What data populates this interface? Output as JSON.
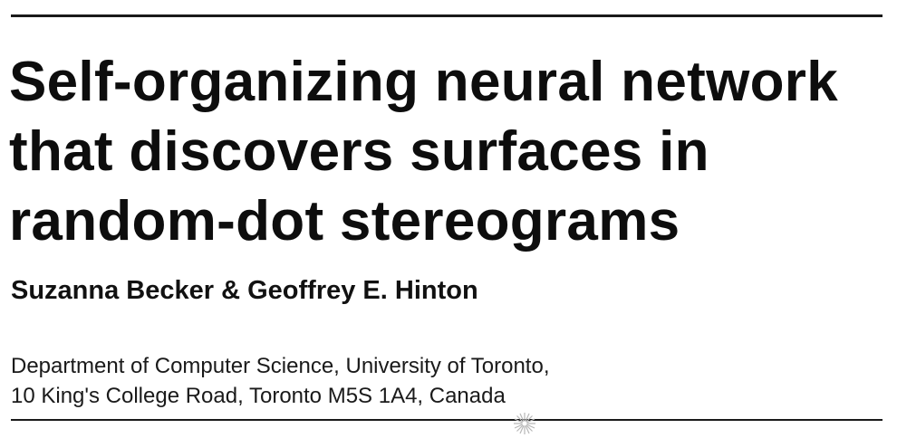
{
  "paper": {
    "title_lines": [
      "Self-organizing neural network",
      "that discovers surfaces in",
      "random-dot stereograms"
    ],
    "authors": "Suzanna Becker & Geoffrey E. Hinton",
    "affiliation_lines": [
      "Department of Computer Science, University of Toronto,",
      "10 King's College Road, Toronto M5S 1A4, Canada"
    ]
  },
  "decorations": {
    "ornament_icon": "starburst-watermark-icon",
    "rule_color": "#1a1a1a"
  }
}
